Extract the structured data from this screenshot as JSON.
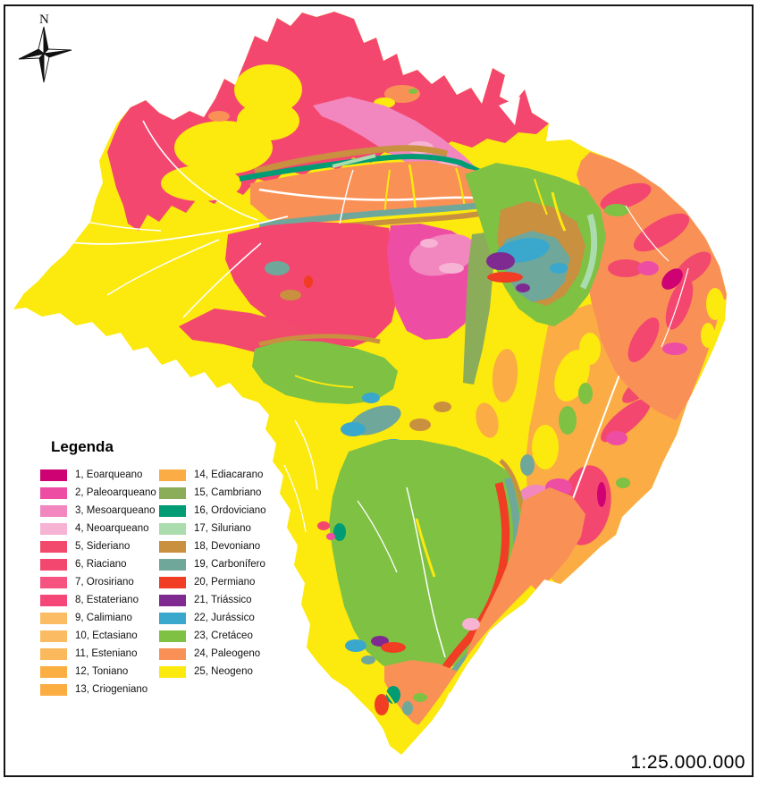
{
  "frame": {
    "scale_text": "1:25.000.000"
  },
  "north_arrow": {
    "label": "N"
  },
  "legend": {
    "title": "Legenda",
    "items": [
      {
        "label": "1, Eoarqueano",
        "color": "#CE0272"
      },
      {
        "label": "2, Paleoarqueano",
        "color": "#EE4DA4"
      },
      {
        "label": "3, Mesoarqueano",
        "color": "#F287BF"
      },
      {
        "label": "4, Neoarqueano",
        "color": "#F6B3D4"
      },
      {
        "label": "5, Sideriano",
        "color": "#F24A6D"
      },
      {
        "label": "6, Riaciano",
        "color": "#F4476F"
      },
      {
        "label": "7, Orosiriano",
        "color": "#F65380"
      },
      {
        "label": "8, Estateriano",
        "color": "#F54878"
      },
      {
        "label": "9, Calimiano",
        "color": "#FBBC63"
      },
      {
        "label": "10, Ectasiano",
        "color": "#FBBB62"
      },
      {
        "label": "11, Esteniano",
        "color": "#FBB95D"
      },
      {
        "label": "12, Toniano",
        "color": "#FBAE41"
      },
      {
        "label": "13, Criogeniano",
        "color": "#FBAD42"
      },
      {
        "label": "14, Ediacarano",
        "color": "#FBAC45"
      },
      {
        "label": "15, Cambriano",
        "color": "#8BAD5A"
      },
      {
        "label": "16, Ordoviciano",
        "color": "#019C74"
      },
      {
        "label": "17, Siluriano",
        "color": "#AADCAE"
      },
      {
        "label": "18, Devoniano",
        "color": "#C99040"
      },
      {
        "label": "19, Carbonífero",
        "color": "#6FA79A"
      },
      {
        "label": "20, Permiano",
        "color": "#F03D24"
      },
      {
        "label": "21, Triássico",
        "color": "#7F2A90"
      },
      {
        "label": "22, Jurássico",
        "color": "#3AA7CD"
      },
      {
        "label": "23, Cretáceo",
        "color": "#7EC143"
      },
      {
        "label": "24, Paleogeno",
        "color": "#F99157"
      },
      {
        "label": "25, Neogeno",
        "color": "#FCE90E"
      }
    ]
  }
}
